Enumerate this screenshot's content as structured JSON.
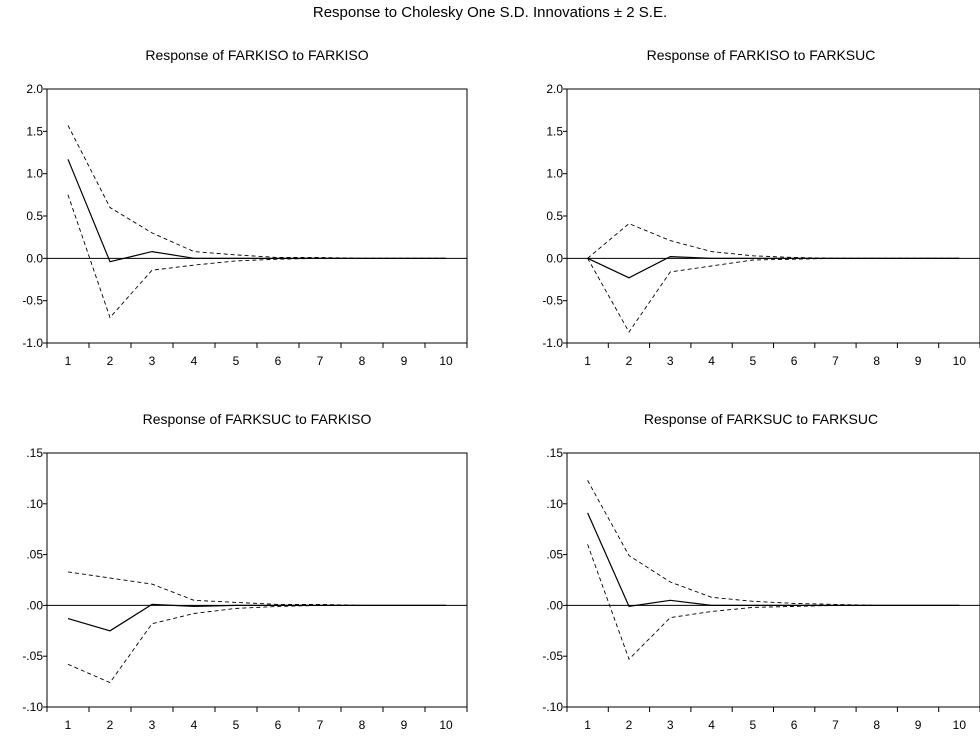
{
  "figure": {
    "title": "Response to Cholesky One S.D. Innovations ± 2 S.E."
  },
  "chart_data": [
    {
      "type": "line",
      "title": "Response of FARKISO to FARKISO",
      "x": [
        1,
        2,
        3,
        4,
        5,
        6,
        7,
        8,
        9,
        10
      ],
      "ylim": [
        -1.0,
        2.0
      ],
      "yticks": [
        -1.0,
        -0.5,
        0.0,
        0.5,
        1.0,
        1.5,
        2.0
      ],
      "ytick_labels": [
        "-1.0",
        "-0.5",
        "0.0",
        "0.5",
        "1.0",
        "1.5",
        "2.0"
      ],
      "zero_line": true,
      "series": [
        {
          "role": "response",
          "style": "solid",
          "values": [
            1.17,
            -0.04,
            0.08,
            0.0,
            0.0,
            0.0,
            0.0,
            0.0,
            0.0,
            0.0
          ]
        },
        {
          "role": "upper",
          "style": "dashed",
          "values": [
            1.57,
            0.6,
            0.3,
            0.08,
            0.04,
            0.01,
            0.01,
            0.0,
            0.0,
            0.0
          ]
        },
        {
          "role": "lower",
          "style": "dashed",
          "values": [
            0.75,
            -0.7,
            -0.14,
            -0.08,
            -0.03,
            -0.01,
            0.0,
            0.0,
            0.0,
            0.0
          ]
        }
      ]
    },
    {
      "type": "line",
      "title": "Response of FARKISO to FARKSUC",
      "x": [
        1,
        2,
        3,
        4,
        5,
        6,
        7,
        8,
        9,
        10
      ],
      "ylim": [
        -1.0,
        2.0
      ],
      "yticks": [
        -1.0,
        -0.5,
        0.0,
        0.5,
        1.0,
        1.5,
        2.0
      ],
      "ytick_labels": [
        "-1.0",
        "-0.5",
        "0.0",
        "0.5",
        "1.0",
        "1.5",
        "2.0"
      ],
      "zero_line": true,
      "series": [
        {
          "role": "response",
          "style": "solid",
          "values": [
            0.0,
            -0.23,
            0.02,
            0.0,
            0.0,
            0.0,
            0.0,
            0.0,
            0.0,
            0.0
          ]
        },
        {
          "role": "upper",
          "style": "dashed",
          "values": [
            0.0,
            0.41,
            0.21,
            0.08,
            0.03,
            0.01,
            0.0,
            0.0,
            0.0,
            0.0
          ]
        },
        {
          "role": "lower",
          "style": "dashed",
          "values": [
            0.0,
            -0.87,
            -0.16,
            -0.09,
            -0.02,
            -0.01,
            0.0,
            0.0,
            0.0,
            0.0
          ]
        }
      ]
    },
    {
      "type": "line",
      "title": "Response of FARKSUC to FARKISO",
      "x": [
        1,
        2,
        3,
        4,
        5,
        6,
        7,
        8,
        9,
        10
      ],
      "ylim": [
        -0.1,
        0.15
      ],
      "yticks": [
        -0.1,
        -0.05,
        0.0,
        0.05,
        0.1,
        0.15
      ],
      "ytick_labels": [
        "-.10",
        "-.05",
        ".00",
        ".05",
        ".10",
        ".15"
      ],
      "zero_line": true,
      "series": [
        {
          "role": "response",
          "style": "solid",
          "values": [
            -0.013,
            -0.025,
            0.001,
            -0.001,
            0.0,
            0.0,
            0.0,
            0.0,
            0.0,
            0.0
          ]
        },
        {
          "role": "upper",
          "style": "dashed",
          "values": [
            0.033,
            0.027,
            0.021,
            0.005,
            0.003,
            0.001,
            0.001,
            0.0,
            0.0,
            0.0
          ]
        },
        {
          "role": "lower",
          "style": "dashed",
          "values": [
            -0.058,
            -0.076,
            -0.018,
            -0.008,
            -0.003,
            -0.001,
            0.0,
            0.0,
            0.0,
            0.0
          ]
        }
      ]
    },
    {
      "type": "line",
      "title": "Response of FARKSUC to FARKSUC",
      "x": [
        1,
        2,
        3,
        4,
        5,
        6,
        7,
        8,
        9,
        10
      ],
      "ylim": [
        -0.1,
        0.15
      ],
      "yticks": [
        -0.1,
        -0.05,
        0.0,
        0.05,
        0.1,
        0.15
      ],
      "ytick_labels": [
        "-.10",
        "-.05",
        ".00",
        ".05",
        ".10",
        ".15"
      ],
      "zero_line": true,
      "series": [
        {
          "role": "response",
          "style": "solid",
          "values": [
            0.091,
            -0.001,
            0.005,
            0.0,
            0.0,
            0.0,
            0.0,
            0.0,
            0.0,
            0.0
          ]
        },
        {
          "role": "upper",
          "style": "dashed",
          "values": [
            0.123,
            0.049,
            0.023,
            0.008,
            0.004,
            0.002,
            0.001,
            0.0,
            0.0,
            0.0
          ]
        },
        {
          "role": "lower",
          "style": "dashed",
          "values": [
            0.06,
            -0.053,
            -0.012,
            -0.006,
            -0.002,
            -0.001,
            0.0,
            0.0,
            0.0,
            0.0
          ]
        }
      ]
    }
  ]
}
